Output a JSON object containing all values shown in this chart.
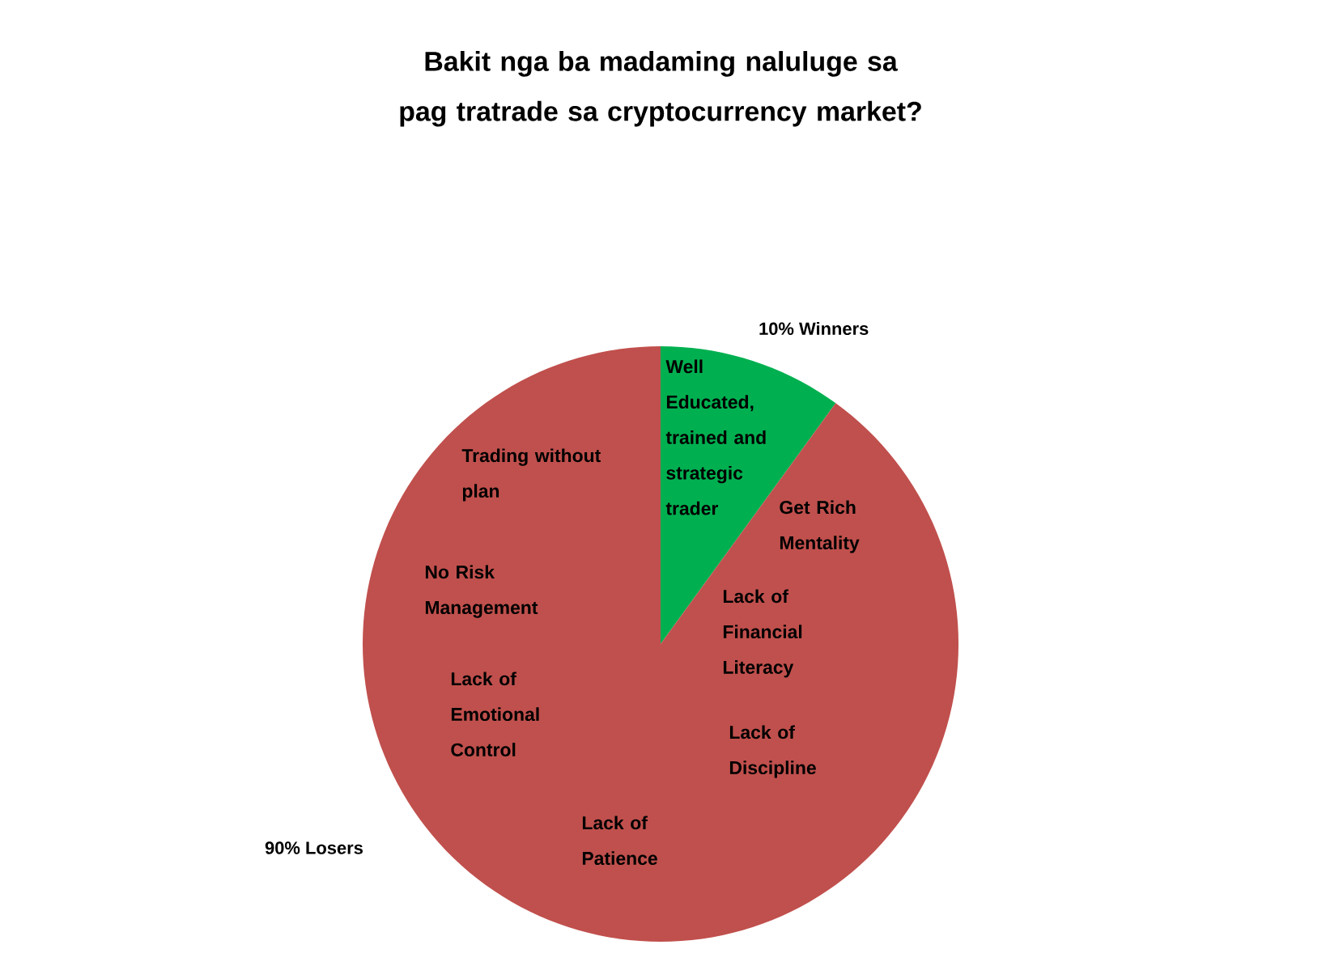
{
  "chart_data": {
    "type": "pie",
    "title": "Bakit nga ba madaming naluluge sa pag tratrade sa cryptocurrency market?",
    "categories": [
      "Winners",
      "Losers"
    ],
    "values": [
      10,
      90
    ],
    "value_labels": [
      "10%",
      "90%"
    ],
    "colors": [
      "#00b050",
      "#c0504d"
    ],
    "annotations": [
      "Well Educated, trained and strategic trader",
      "Get Rich Mentality",
      "Trading without plan",
      "No Risk Management",
      "Lack of Financial Literacy",
      "Lack of Emotional Control",
      "Lack of Discipline",
      "Lack of Patience"
    ]
  }
}
